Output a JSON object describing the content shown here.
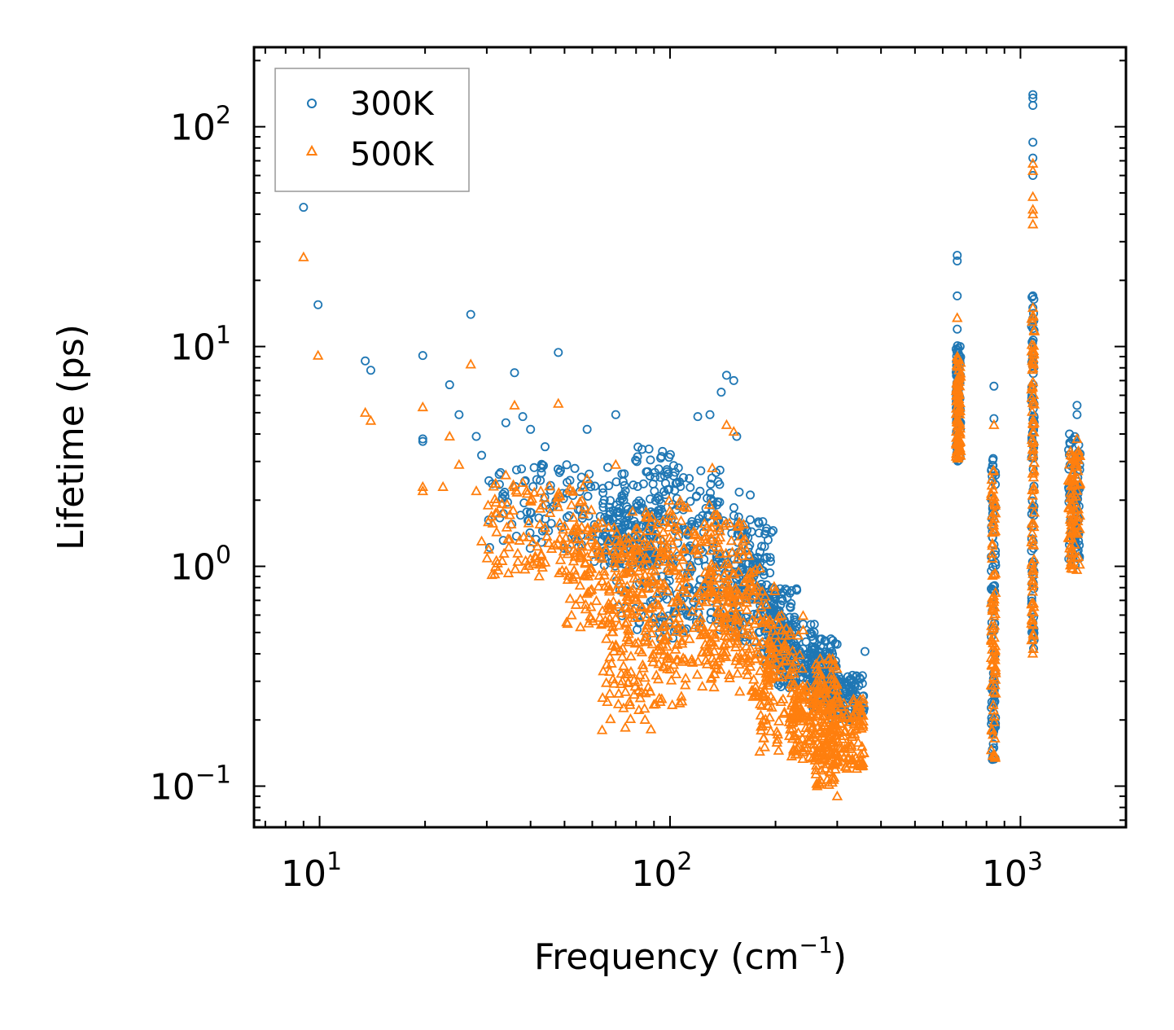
{
  "chart_data": {
    "type": "scatter",
    "xscale": "log",
    "yscale": "log",
    "xlabel": "Frequency (cm",
    "xlabel_sup": "−1",
    "xlabel_tail": ")",
    "ylabel": "Lifetime (ps)",
    "xlim": [
      6.5,
      2000
    ],
    "ylim": [
      0.065,
      230
    ],
    "x_ticks": [
      {
        "base": "10",
        "exp": "1",
        "value": 10
      },
      {
        "base": "10",
        "exp": "2",
        "value": 100
      },
      {
        "base": "10",
        "exp": "3",
        "value": 1000
      }
    ],
    "y_ticks": [
      {
        "base": "10",
        "exp": "−1",
        "value": 0.1
      },
      {
        "base": "10",
        "exp": "0",
        "value": 1
      },
      {
        "base": "10",
        "exp": "1",
        "value": 10
      },
      {
        "base": "10",
        "exp": "2",
        "value": 100
      }
    ],
    "legend_position": "top-left",
    "series": [
      {
        "name": "300K",
        "marker": "circle",
        "color": "#1f77b4",
        "points": [
          [
            9.0,
            43
          ],
          [
            9.9,
            15.5
          ],
          [
            13.5,
            8.6
          ],
          [
            14,
            7.8
          ],
          [
            19.7,
            9.1
          ],
          [
            19.7,
            3.8
          ],
          [
            19.7,
            3.7
          ],
          [
            23.5,
            6.7
          ],
          [
            25,
            4.9
          ],
          [
            27,
            14
          ],
          [
            28,
            3.9
          ],
          [
            29,
            3.2
          ],
          [
            34,
            4.5
          ],
          [
            36,
            7.6
          ],
          [
            38,
            4.8
          ],
          [
            40,
            4.2
          ],
          [
            44,
            3.5
          ],
          [
            48,
            9.4
          ],
          [
            58,
            4.2
          ],
          [
            70,
            4.9
          ],
          [
            120,
            4.8
          ],
          [
            130,
            4.9
          ],
          [
            140,
            6.2
          ],
          [
            145,
            7.4
          ],
          [
            152,
            7.0
          ],
          [
            155,
            3.9
          ],
          [
            660,
            26
          ],
          [
            660,
            24.5
          ],
          [
            660,
            17
          ],
          [
            660,
            12
          ],
          [
            840,
            6.6
          ],
          [
            840,
            4.7
          ],
          [
            1085,
            140
          ],
          [
            1085,
            135
          ],
          [
            1085,
            125
          ],
          [
            1085,
            85
          ],
          [
            1085,
            72
          ],
          [
            1085,
            60
          ],
          [
            1085,
            17
          ],
          [
            1085,
            15
          ],
          [
            1450,
            5.4
          ],
          [
            1450,
            4.9
          ],
          [
            1380,
            4.0
          ],
          [
            360,
            0.41
          ]
        ],
        "clusters": [
          [
            30,
            75,
            1.2,
            3.0
          ],
          [
            60,
            90,
            1.0,
            2.0
          ],
          [
            70,
            110,
            0.45,
            3.5
          ],
          [
            80,
            140,
            0.5,
            2.8
          ],
          [
            110,
            170,
            0.55,
            2.2
          ],
          [
            150,
            200,
            0.45,
            1.6
          ],
          [
            180,
            230,
            0.35,
            0.8
          ],
          [
            200,
            260,
            0.28,
            0.55
          ],
          [
            250,
            300,
            0.22,
            0.48
          ],
          [
            280,
            360,
            0.2,
            0.32
          ],
          [
            655,
            675,
            3.0,
            10.5
          ],
          [
            825,
            850,
            0.13,
            3.2
          ],
          [
            1075,
            1095,
            0.42,
            17.5
          ],
          [
            1370,
            1480,
            1.0,
            4.0
          ]
        ]
      },
      {
        "name": "500K",
        "marker": "triangle",
        "color": "#ff7f0e",
        "points": [
          [
            9.0,
            25.5
          ],
          [
            9.9,
            9.1
          ],
          [
            13.5,
            5.0
          ],
          [
            14,
            4.6
          ],
          [
            19.7,
            5.3
          ],
          [
            19.7,
            2.3
          ],
          [
            19.7,
            2.2
          ],
          [
            22.5,
            2.3
          ],
          [
            23.5,
            3.9
          ],
          [
            25,
            2.9
          ],
          [
            27,
            8.3
          ],
          [
            28,
            2.2
          ],
          [
            29,
            1.3
          ],
          [
            34,
            2.6
          ],
          [
            36,
            5.4
          ],
          [
            38,
            2.4
          ],
          [
            40,
            2.0
          ],
          [
            44,
            1.5
          ],
          [
            48,
            5.5
          ],
          [
            58,
            2.5
          ],
          [
            70,
            2.9
          ],
          [
            132,
            2.8
          ],
          [
            145,
            4.4
          ],
          [
            152,
            4.1
          ],
          [
            64,
            0.18
          ],
          [
            300,
            0.09
          ],
          [
            660,
            13.5
          ],
          [
            660,
            9
          ],
          [
            840,
            4.4
          ],
          [
            1085,
            68
          ],
          [
            1085,
            63
          ],
          [
            1085,
            48
          ],
          [
            1085,
            42
          ],
          [
            1085,
            40
          ],
          [
            1085,
            36
          ],
          [
            1085,
            15
          ],
          [
            1450,
            3.8
          ]
        ],
        "clusters": [
          [
            30,
            60,
            0.9,
            2.4
          ],
          [
            50,
            80,
            0.5,
            1.6
          ],
          [
            64,
            95,
            0.18,
            1.3
          ],
          [
            75,
            110,
            0.22,
            1.9
          ],
          [
            95,
            140,
            0.28,
            2.0
          ],
          [
            120,
            170,
            0.3,
            1.6
          ],
          [
            140,
            200,
            0.25,
            1.0
          ],
          [
            180,
            240,
            0.14,
            0.6
          ],
          [
            220,
            280,
            0.13,
            0.3
          ],
          [
            260,
            300,
            0.1,
            0.4
          ],
          [
            280,
            360,
            0.12,
            0.25
          ],
          [
            655,
            675,
            3.0,
            9.0
          ],
          [
            825,
            850,
            0.13,
            2.8
          ],
          [
            1075,
            1095,
            0.4,
            14
          ],
          [
            1370,
            1480,
            0.95,
            3.4
          ]
        ]
      }
    ]
  }
}
